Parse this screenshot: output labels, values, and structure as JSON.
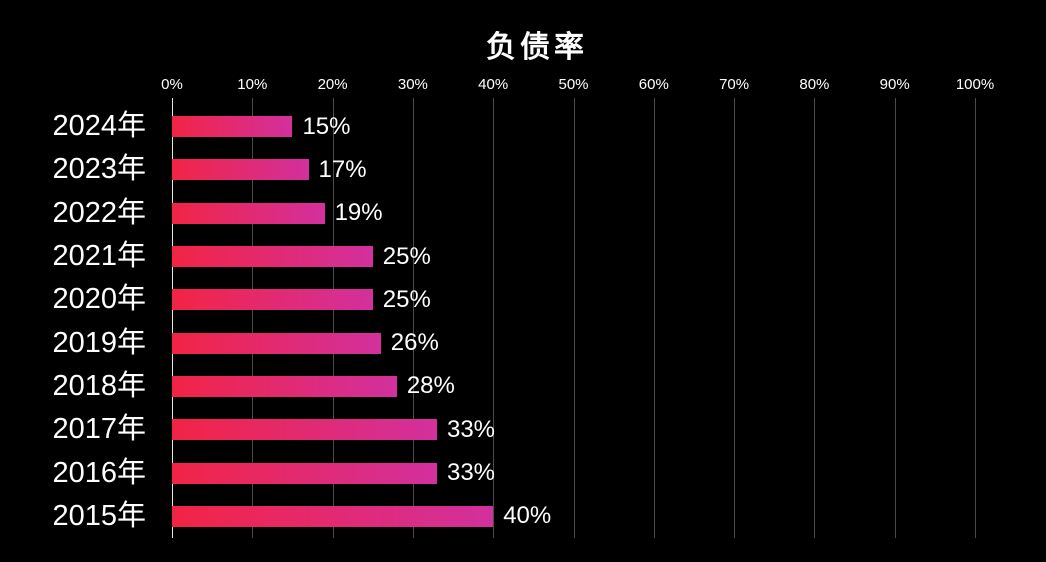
{
  "title": "负债率",
  "colors": {
    "background": "#000000",
    "text": "#ffffff",
    "gridline": "#4a4a4a",
    "axis_line": "#e6e6e6",
    "bar_gradient_start": "#F22445",
    "bar_gradient_end": "#D2309E"
  },
  "chart_data": {
    "type": "bar",
    "orientation": "horizontal",
    "title": "负债率",
    "categories": [
      "2024年",
      "2023年",
      "2022年",
      "2021年",
      "2020年",
      "2019年",
      "2018年",
      "2017年",
      "2016年",
      "2015年"
    ],
    "values": [
      15,
      17,
      19,
      25,
      25,
      26,
      28,
      33,
      33,
      40
    ],
    "value_labels": [
      "15%",
      "17%",
      "19%",
      "25%",
      "25%",
      "26%",
      "28%",
      "33%",
      "33%",
      "40%"
    ],
    "xlabel": "",
    "ylabel": "",
    "xlim": [
      0,
      100
    ],
    "x_ticks": [
      0,
      10,
      20,
      30,
      40,
      50,
      60,
      70,
      80,
      90,
      100
    ],
    "x_tick_labels": [
      "0%",
      "10%",
      "20%",
      "30%",
      "40%",
      "50%",
      "60%",
      "70%",
      "80%",
      "90%",
      "100%"
    ],
    "grid": true,
    "legend": false,
    "axis_position": "top"
  }
}
